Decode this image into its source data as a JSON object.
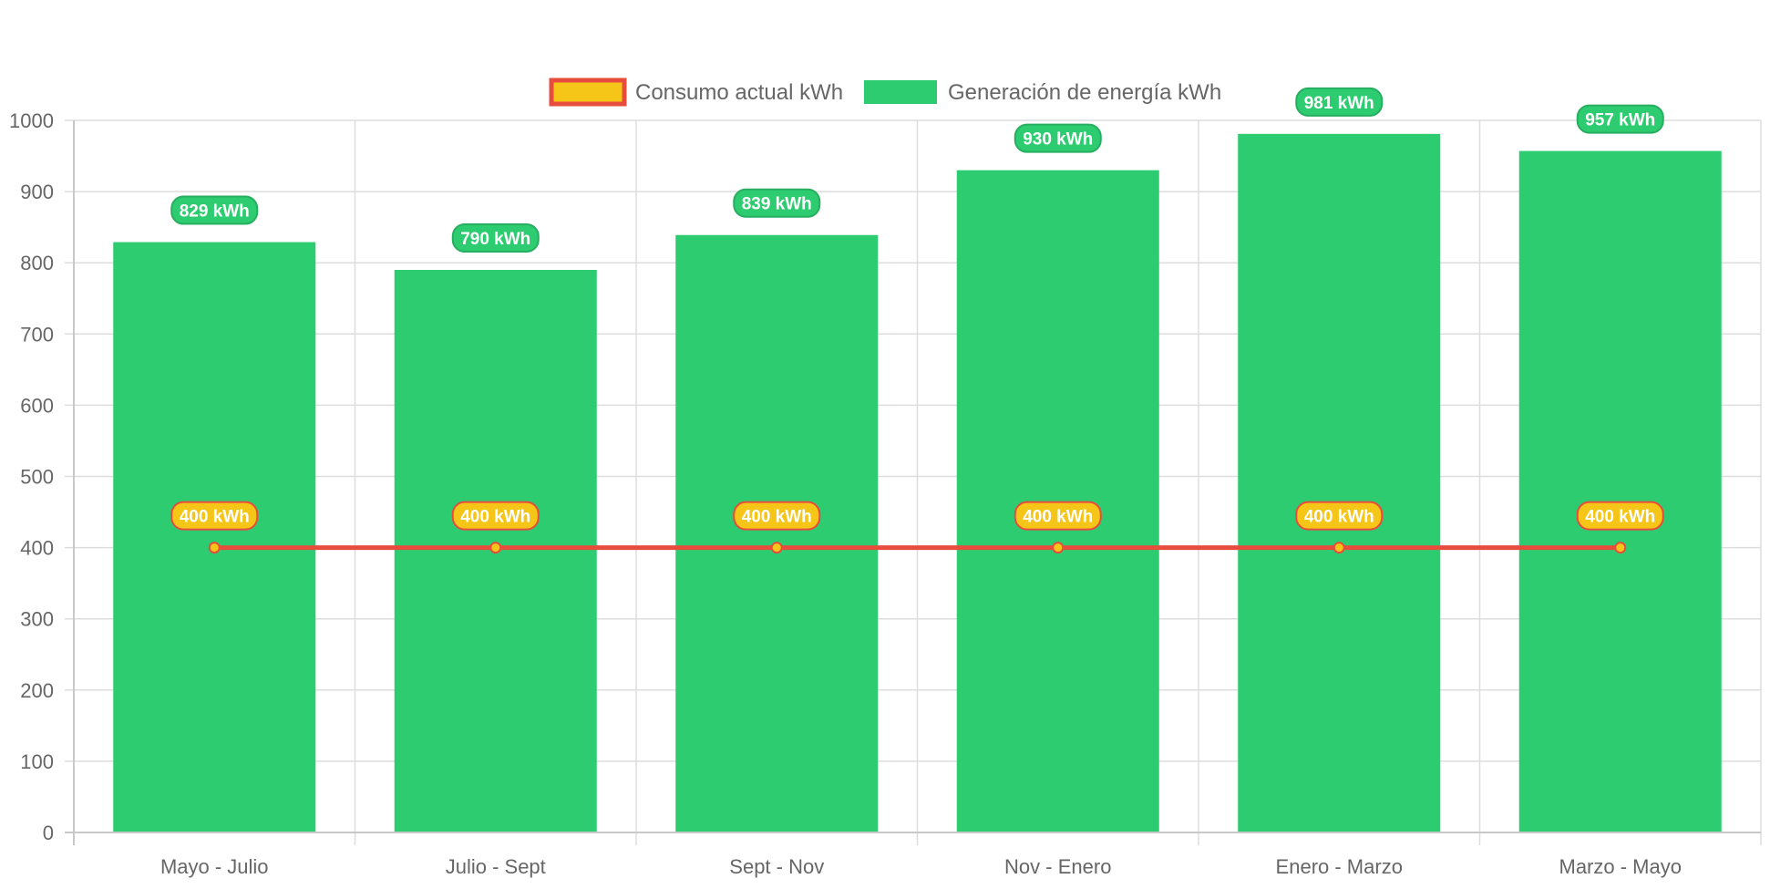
{
  "chart_data": {
    "type": "bar",
    "categories": [
      "Mayo - Julio",
      "Julio - Sept",
      "Sept - Nov",
      "Nov - Enero",
      "Enero - Marzo",
      "Marzo - Mayo"
    ],
    "series": [
      {
        "name": "Consumo actual kWh",
        "type": "line",
        "values": [
          400,
          400,
          400,
          400,
          400,
          400
        ],
        "labels": [
          "400 kWh",
          "400 kWh",
          "400 kWh",
          "400 kWh",
          "400 kWh",
          "400 kWh"
        ],
        "color": "#e74c3c",
        "fill_color": "#f5c518"
      },
      {
        "name": "Generación de energía kWh",
        "type": "bar",
        "values": [
          829,
          790,
          839,
          930,
          981,
          957
        ],
        "labels": [
          "829 kWh",
          "790 kWh",
          "839 kWh",
          "930 kWh",
          "981 kWh",
          "957 kWh"
        ],
        "color": "#2ecc71",
        "label_border_color": "#27ae60"
      }
    ],
    "y_ticks": [
      "0",
      "100",
      "200",
      "300",
      "400",
      "500",
      "600",
      "700",
      "800",
      "900",
      "1000"
    ],
    "ylim": [
      0,
      1000
    ],
    "grid": true,
    "legend_position": "top-center"
  }
}
